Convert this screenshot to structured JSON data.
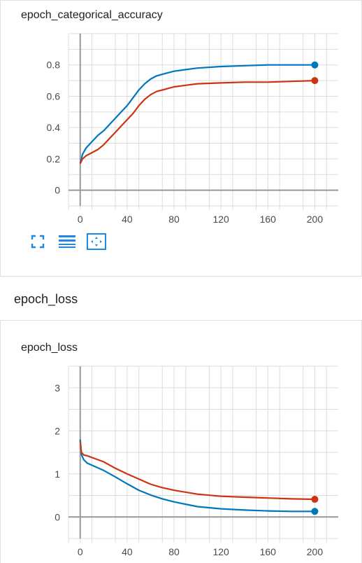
{
  "sections": {
    "loss_header": "epoch_loss"
  },
  "colors": {
    "blue": "#0077bb",
    "orange": "#cc3311",
    "grid": "#dddddd",
    "axis": "#999999"
  },
  "toolbar": {
    "icons": [
      "fullscreen-icon",
      "toggle-log-scale-icon",
      "fit-domain-icon"
    ]
  },
  "chart_data": [
    {
      "type": "line",
      "title": "epoch_categorical_accuracy",
      "xlabel": "",
      "ylabel": "",
      "xlim": [
        -10,
        220
      ],
      "ylim": [
        -0.1,
        1.0
      ],
      "xticks": [
        0,
        40,
        80,
        120,
        160,
        200
      ],
      "yticks": [
        0,
        0.2,
        0.4,
        0.6,
        0.8
      ],
      "ytick_labels": [
        "0",
        "0.2",
        "0.4",
        "0.6",
        "0.8"
      ],
      "grid": true,
      "series": [
        {
          "color": "#0077bb",
          "x": [
            0,
            2,
            5,
            10,
            15,
            20,
            25,
            30,
            35,
            40,
            45,
            50,
            55,
            60,
            65,
            70,
            80,
            90,
            100,
            120,
            140,
            160,
            180,
            200
          ],
          "y": [
            0.17,
            0.23,
            0.27,
            0.31,
            0.35,
            0.38,
            0.42,
            0.46,
            0.5,
            0.54,
            0.59,
            0.64,
            0.68,
            0.71,
            0.73,
            0.74,
            0.76,
            0.77,
            0.78,
            0.79,
            0.795,
            0.8,
            0.8,
            0.8
          ]
        },
        {
          "color": "#cc3311",
          "x": [
            0,
            2,
            5,
            10,
            15,
            20,
            25,
            30,
            35,
            40,
            45,
            50,
            55,
            60,
            65,
            70,
            80,
            90,
            100,
            120,
            140,
            160,
            180,
            200
          ],
          "y": [
            0.17,
            0.2,
            0.22,
            0.24,
            0.26,
            0.29,
            0.33,
            0.37,
            0.41,
            0.45,
            0.49,
            0.54,
            0.58,
            0.61,
            0.63,
            0.64,
            0.66,
            0.67,
            0.68,
            0.685,
            0.69,
            0.69,
            0.695,
            0.7
          ]
        }
      ]
    },
    {
      "type": "line",
      "title": "epoch_loss",
      "xlabel": "",
      "ylabel": "",
      "xlim": [
        -10,
        220
      ],
      "ylim": [
        -0.5,
        3.5
      ],
      "xticks": [
        0,
        40,
        80,
        120,
        160,
        200
      ],
      "yticks": [
        0,
        1,
        2,
        3
      ],
      "ytick_labels": [
        "0",
        "1",
        "2",
        "3"
      ],
      "grid": true,
      "series": [
        {
          "color": "#0077bb",
          "x": [
            0,
            1,
            3,
            6,
            10,
            20,
            30,
            40,
            50,
            60,
            70,
            80,
            100,
            120,
            140,
            160,
            180,
            200
          ],
          "y": [
            1.8,
            1.45,
            1.33,
            1.25,
            1.2,
            1.08,
            0.93,
            0.77,
            0.62,
            0.51,
            0.42,
            0.35,
            0.24,
            0.19,
            0.16,
            0.14,
            0.13,
            0.13
          ]
        },
        {
          "color": "#cc3311",
          "x": [
            0,
            1,
            3,
            6,
            10,
            20,
            30,
            40,
            50,
            60,
            70,
            80,
            100,
            120,
            140,
            160,
            180,
            200
          ],
          "y": [
            1.75,
            1.5,
            1.44,
            1.42,
            1.38,
            1.28,
            1.13,
            1.0,
            0.88,
            0.76,
            0.68,
            0.62,
            0.53,
            0.48,
            0.46,
            0.44,
            0.42,
            0.41
          ]
        }
      ]
    }
  ]
}
